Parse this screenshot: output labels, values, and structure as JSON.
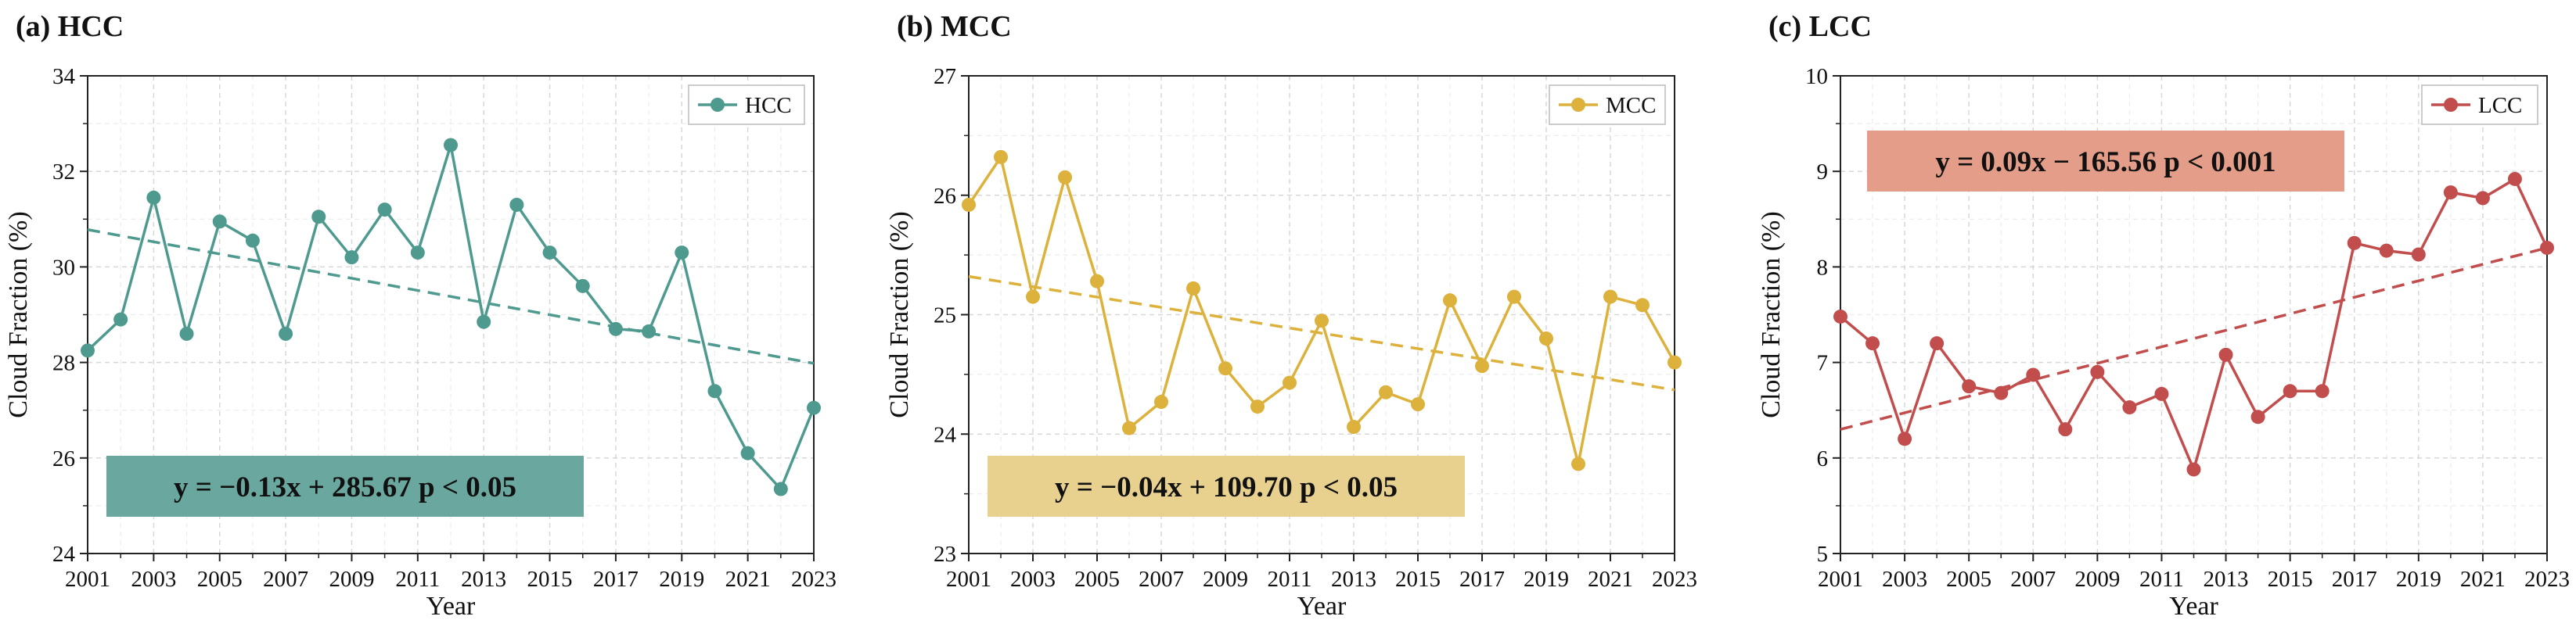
{
  "figure": {
    "name": "three-panel cloud fraction time series"
  },
  "chart_data": [
    {
      "type": "line",
      "panel_title": "(a) HCC",
      "xlabel": "Year",
      "ylabel": "Cloud Fraction (%)",
      "xlim": [
        2001,
        2023
      ],
      "ylim": [
        24,
        34
      ],
      "xticks": [
        2001,
        2003,
        2005,
        2007,
        2009,
        2011,
        2013,
        2015,
        2017,
        2019,
        2021,
        2023
      ],
      "yticks": [
        24,
        26,
        28,
        30,
        32,
        34
      ],
      "grid": true,
      "legend": {
        "label": "HCC",
        "position": "top-right"
      },
      "color": "#4f9a8f",
      "x": [
        2001,
        2002,
        2003,
        2004,
        2005,
        2006,
        2007,
        2008,
        2009,
        2010,
        2011,
        2012,
        2013,
        2014,
        2015,
        2016,
        2017,
        2018,
        2019,
        2020,
        2021,
        2022,
        2023
      ],
      "values": [
        28.25,
        28.9,
        31.45,
        28.6,
        30.95,
        30.55,
        28.6,
        31.05,
        30.2,
        31.2,
        30.3,
        32.55,
        28.85,
        31.3,
        30.3,
        29.6,
        28.7,
        28.65,
        30.3,
        27.4,
        26.1,
        25.35,
        27.05
      ],
      "trend": {
        "slope": -0.13,
        "intercept": 285.67,
        "start": [
          2001,
          30.78
        ],
        "end": [
          2023,
          27.98
        ]
      },
      "annotation": "y = −0.13x + 285.67   p < 0.05",
      "annotation_color": "#6aa89f",
      "annotation_position": "bottom-left"
    },
    {
      "type": "line",
      "panel_title": "(b) MCC",
      "xlabel": "Year",
      "ylabel": "Cloud Fraction (%)",
      "xlim": [
        2001,
        2023
      ],
      "ylim": [
        23,
        27
      ],
      "xticks": [
        2001,
        2003,
        2005,
        2007,
        2009,
        2011,
        2013,
        2015,
        2017,
        2019,
        2021,
        2023
      ],
      "yticks": [
        23,
        24,
        25,
        26,
        27
      ],
      "grid": true,
      "legend": {
        "label": "MCC",
        "position": "top-right"
      },
      "color": "#dcb13c",
      "x": [
        2001,
        2002,
        2003,
        2004,
        2005,
        2006,
        2007,
        2008,
        2009,
        2010,
        2011,
        2012,
        2013,
        2014,
        2015,
        2016,
        2017,
        2018,
        2019,
        2020,
        2021,
        2022,
        2023
      ],
      "values": [
        25.92,
        26.32,
        25.15,
        26.15,
        25.28,
        24.05,
        24.27,
        25.22,
        24.55,
        24.23,
        24.43,
        24.95,
        24.06,
        24.35,
        24.25,
        25.12,
        24.57,
        25.15,
        24.8,
        23.75,
        25.15,
        25.08,
        24.6
      ],
      "trend": {
        "slope": -0.04,
        "intercept": 109.7,
        "start": [
          2001,
          25.32
        ],
        "end": [
          2023,
          24.37
        ]
      },
      "annotation": "y = −0.04x + 109.70   p < 0.05",
      "annotation_color": "#e8d18f",
      "annotation_position": "bottom-left"
    },
    {
      "type": "line",
      "panel_title": "(c) LCC",
      "xlabel": "Year",
      "ylabel": "Cloud Fraction (%)",
      "xlim": [
        2001,
        2023
      ],
      "ylim": [
        5,
        10
      ],
      "xticks": [
        2001,
        2003,
        2005,
        2007,
        2009,
        2011,
        2013,
        2015,
        2017,
        2019,
        2021,
        2023
      ],
      "yticks": [
        5,
        6,
        7,
        8,
        9,
        10
      ],
      "grid": true,
      "legend": {
        "label": "LCC",
        "position": "top-right"
      },
      "color": "#c24d4d",
      "x": [
        2001,
        2002,
        2003,
        2004,
        2005,
        2006,
        2007,
        2008,
        2009,
        2010,
        2011,
        2012,
        2013,
        2014,
        2015,
        2016,
        2017,
        2018,
        2019,
        2020,
        2021,
        2022,
        2023
      ],
      "values": [
        7.48,
        7.2,
        6.2,
        7.2,
        6.75,
        6.68,
        6.87,
        6.3,
        6.9,
        6.53,
        6.67,
        5.88,
        7.08,
        6.43,
        6.7,
        6.7,
        8.25,
        8.17,
        8.13,
        8.78,
        8.72,
        8.92,
        8.2
      ],
      "trend": {
        "slope": 0.09,
        "intercept": -165.56,
        "start": [
          2001,
          6.3
        ],
        "end": [
          2023,
          8.2
        ]
      },
      "annotation": "y = 0.09x − 165.56   p < 0.001",
      "annotation_color": "#e39d88",
      "annotation_position": "top-left"
    }
  ]
}
